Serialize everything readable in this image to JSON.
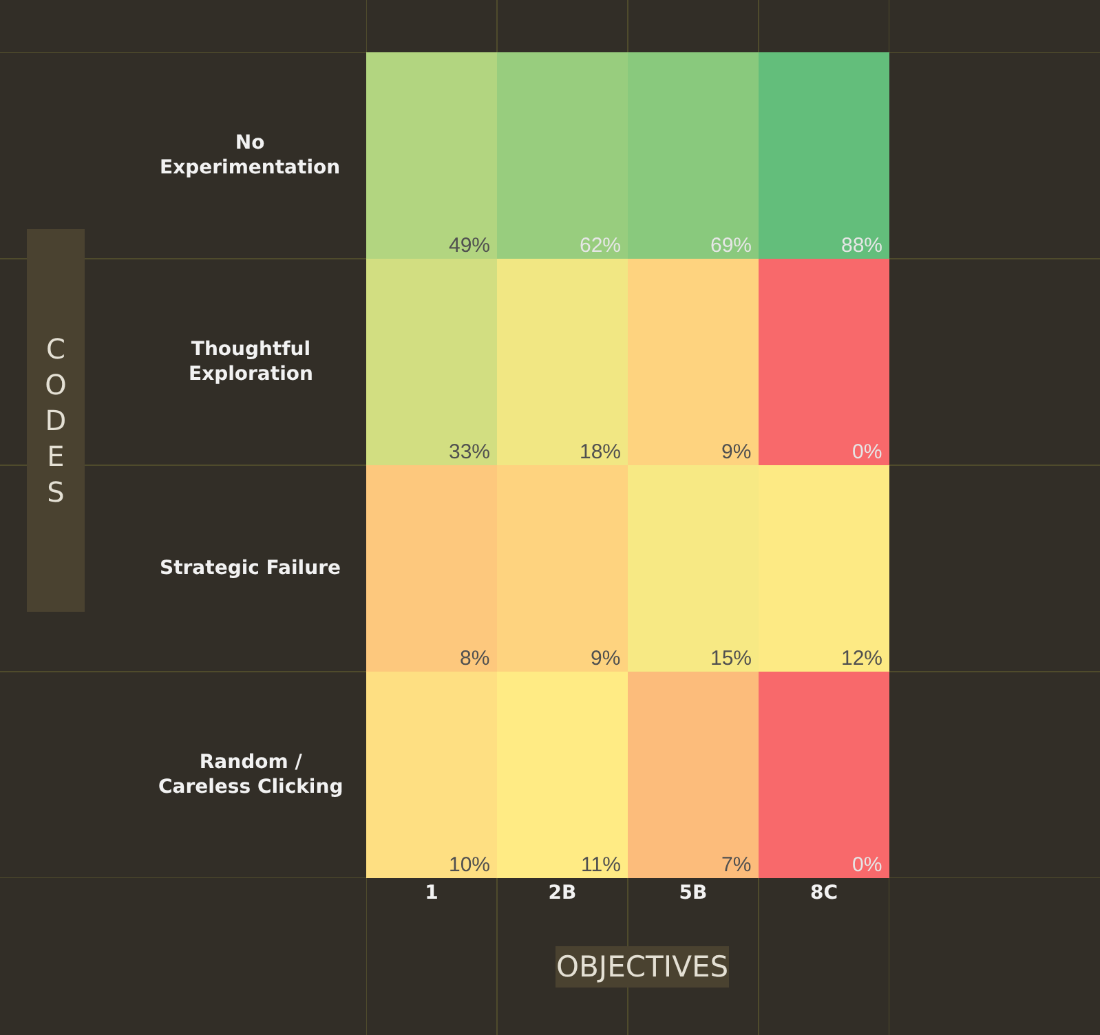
{
  "chart_data": {
    "type": "heatmap",
    "xlabel": "OBJECTIVES",
    "ylabel": "CODES",
    "categories": [
      "1",
      "2B",
      "5B",
      "8C"
    ],
    "y_categories": [
      "No\nExperimentation",
      "Thoughtful\nExploration",
      "Strategic Failure",
      "Random /\nCareless Clicking"
    ],
    "cells": [
      [
        49,
        62,
        69,
        88
      ],
      [
        33,
        18,
        9,
        0
      ],
      [
        8,
        9,
        15,
        12
      ],
      [
        10,
        11,
        7,
        0
      ]
    ],
    "cell_labels": [
      [
        "49%",
        "62%",
        "69%",
        "88%"
      ],
      [
        "33%",
        "18%",
        "9%",
        "0%"
      ],
      [
        "8%",
        "9%",
        "15%",
        "12%"
      ],
      [
        "10%",
        "11%",
        "7%",
        "0%"
      ]
    ],
    "grid": true
  }
}
